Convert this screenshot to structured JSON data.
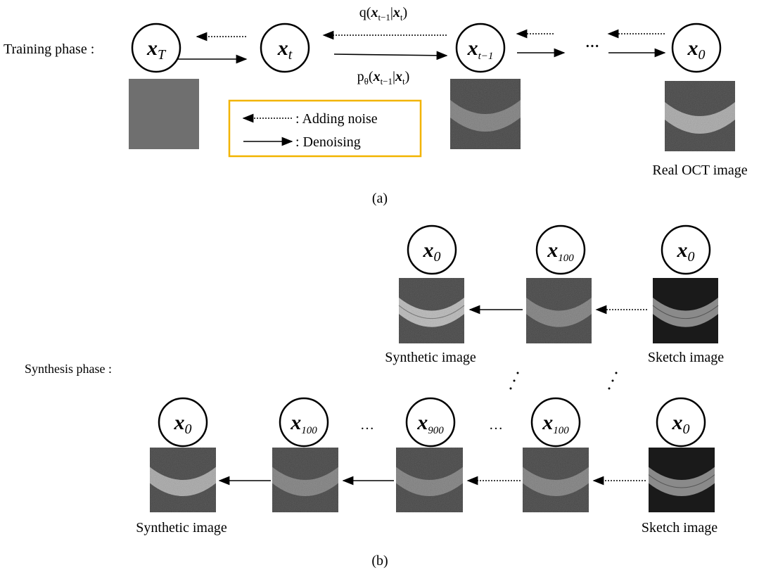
{
  "training": {
    "label": "Training phase :",
    "nodes": [
      {
        "symbol": "x",
        "sub": "T"
      },
      {
        "symbol": "x",
        "sub": "t"
      },
      {
        "symbol": "x",
        "sub": "t−1"
      },
      {
        "symbol": "x",
        "sub": "0"
      }
    ],
    "forward_label": [
      {
        "text": "q("
      },
      {
        "bold": "x"
      },
      {
        "sub": "t−1"
      },
      {
        "text": "|"
      },
      {
        "bold": "x"
      },
      {
        "sub": "t"
      },
      {
        "text": ")"
      }
    ],
    "reverse_label": [
      {
        "text": "p"
      },
      {
        "sub": "θ"
      },
      {
        "text": "("
      },
      {
        "bold": "x"
      },
      {
        "sub": "t−1"
      },
      {
        "text": "|"
      },
      {
        "bold": "x"
      },
      {
        "sub": "t"
      },
      {
        "text": ")"
      }
    ],
    "ellipsis": "···",
    "legend": {
      "noise": ": Adding noise",
      "denoise": ": Denoising"
    },
    "caption": "Real OCT image"
  },
  "panel_a": "(a)",
  "synthesis": {
    "label": "Synthesis phase :",
    "top_nodes": [
      {
        "symbol": "x",
        "sub": "0"
      },
      {
        "symbol": "x",
        "sub": "100"
      },
      {
        "symbol": "x",
        "sub": "0"
      }
    ],
    "bottom_nodes": [
      {
        "symbol": "x",
        "sub": "0"
      },
      {
        "symbol": "x",
        "sub": "100"
      },
      {
        "symbol": "x",
        "sub": "900"
      },
      {
        "symbol": "x",
        "sub": "100"
      },
      {
        "symbol": "x",
        "sub": "0"
      }
    ],
    "ellipses": [
      "…",
      "…"
    ],
    "captions": {
      "top_synthetic": "Synthetic image",
      "top_sketch": "Sketch image",
      "bottom_synthetic": "Synthetic image",
      "bottom_sketch": "Sketch image"
    }
  },
  "panel_b": "(b)"
}
